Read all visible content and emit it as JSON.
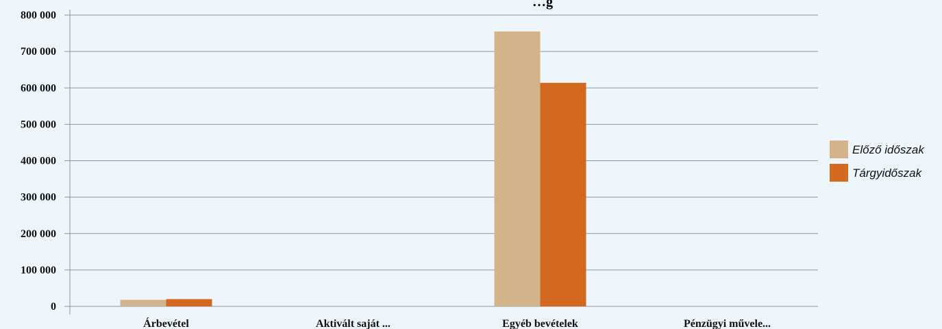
{
  "chart_data": {
    "type": "bar",
    "title": "…g",
    "categories": [
      "Árbevétel",
      "Aktivált saját ...",
      "Egyéb bevételek",
      "Pénzügyi művele..."
    ],
    "series": [
      {
        "name": "Előző időszak",
        "color": "#d3b48a",
        "values": [
          18000,
          0,
          755000,
          0
        ]
      },
      {
        "name": "Tárgyidőszak",
        "color": "#d2691e",
        "values": [
          20000,
          0,
          614000,
          0
        ]
      }
    ],
    "ylim": [
      0,
      800000
    ],
    "yticks": [
      0,
      100000,
      200000,
      300000,
      400000,
      500000,
      600000,
      700000,
      800000
    ],
    "ytick_labels": [
      "0",
      "100 000",
      "200 000",
      "300 000",
      "400 000",
      "500 000",
      "600 000",
      "700 000",
      "800 000"
    ],
    "xlabel": "",
    "ylabel": "",
    "grid": true,
    "legend_position": "right",
    "colors": {
      "background": "#eef6fc",
      "gridline": "#8a96a6",
      "axis": "#8a96a6"
    }
  }
}
